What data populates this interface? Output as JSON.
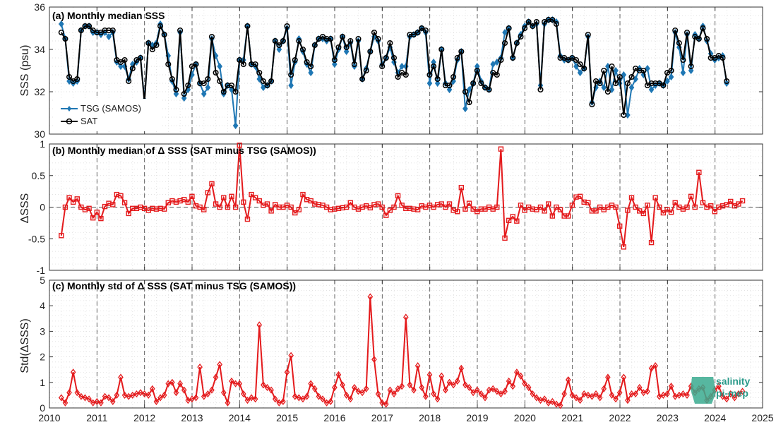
{
  "chart_data": [
    {
      "type": "line",
      "title": "(a) Monthly median SSS",
      "ylabel": "SSS (psu)",
      "xlim": [
        2010,
        2025
      ],
      "ylim": [
        30,
        36
      ],
      "yticks": [
        30,
        32,
        34,
        36
      ],
      "grid": "dotted minor grid, dashed yearly vertical lines",
      "legend": "bottom-left",
      "x_start": 2010.25,
      "x_step": 0.0833,
      "series": [
        {
          "name": "TSG (SAMOS)",
          "color": "#1f77b4",
          "marker": "diamond",
          "values": [
            35.2,
            34.5,
            32.5,
            32.4,
            32.5,
            34.9,
            35.1,
            35.1,
            34.8,
            34.8,
            34.7,
            34.8,
            34.6,
            34.8,
            33.4,
            33.2,
            33.2,
            32.6,
            33.3,
            33.4,
            33.6,
            31.6,
            34.3,
            34.2,
            34.3,
            35.2,
            34.7,
            33.7,
            32.5,
            31.9,
            34.8,
            31.7,
            32.1,
            32.8,
            33.3,
            32.4,
            31.9,
            32.2,
            34.5,
            33.7,
            33.2,
            31.9,
            32.3,
            32.1,
            30.4,
            33.5,
            33.5,
            35.1,
            33.3,
            33.2,
            32.6,
            32.2,
            32.3,
            32.5,
            34.4,
            34.0,
            34.4,
            35.0,
            32.3,
            33.4,
            34.5,
            33.9,
            33.3,
            32.9,
            34.2,
            34.5,
            34.5,
            34.4,
            34.5,
            33.3,
            34.0,
            34.6,
            33.9,
            34.3,
            33.2,
            34.4,
            32.6,
            33.1,
            33.9,
            34.6,
            34.4,
            33.3,
            33.6,
            34.1,
            33.4,
            32.9,
            33.2,
            33.2,
            34.6,
            34.7,
            34.8,
            35.0,
            34.8,
            32.4,
            33.4,
            32.4,
            34.0,
            32.4,
            32.1,
            32.5,
            33.5,
            33.9,
            31.2,
            32.1,
            32.4,
            33.2,
            32.5,
            32.2,
            32.1,
            33.3,
            33.4,
            33.6,
            34.8,
            35.0,
            33.6,
            34.3,
            34.7,
            35.1,
            35.3,
            35.1,
            35.2,
            32.3,
            35.2,
            35.4,
            35.4,
            35.3,
            33.7,
            33.5,
            33.5,
            33.6,
            33.2,
            32.9,
            33.1,
            34.6,
            31.5,
            32.2,
            32.5,
            32.2,
            33.2,
            32.1,
            33.0,
            32.4,
            32.8,
            30.9,
            32.2,
            32.6,
            33.1,
            32.8,
            33.1,
            32.1,
            32.3,
            32.4,
            32.3,
            32.5,
            32.7,
            34.8,
            34.1,
            32.9,
            34.7,
            33.0,
            34.7,
            34.5,
            35.1,
            34.4,
            33.8,
            33.5,
            33.6,
            33.7,
            32.4
          ]
        },
        {
          "name": "SAT",
          "color": "#000000",
          "marker": "circle",
          "values": [
            34.8,
            34.5,
            32.7,
            32.5,
            32.6,
            34.9,
            35.1,
            35.1,
            34.9,
            34.8,
            34.8,
            34.9,
            34.9,
            34.9,
            33.5,
            33.4,
            33.5,
            32.5,
            33.1,
            33.5,
            33.6,
            31.5,
            34.3,
            34.0,
            34.2,
            35.1,
            34.7,
            33.3,
            32.6,
            32.1,
            34.9,
            31.9,
            32.3,
            33.2,
            33.3,
            32.4,
            32.4,
            32.6,
            34.6,
            32.9,
            32.5,
            32.0,
            32.3,
            32.3,
            32.0,
            33.5,
            33.3,
            35.1,
            33.3,
            33.3,
            32.9,
            32.5,
            32.3,
            32.5,
            34.4,
            34.2,
            34.4,
            35.1,
            32.8,
            33.5,
            34.4,
            34.0,
            33.4,
            33.2,
            34.2,
            34.5,
            34.6,
            34.5,
            34.5,
            33.5,
            34.1,
            34.6,
            34.1,
            34.4,
            33.3,
            34.5,
            32.6,
            33.0,
            33.9,
            34.8,
            34.5,
            33.2,
            33.6,
            34.3,
            33.6,
            32.7,
            32.9,
            32.8,
            34.7,
            34.7,
            34.8,
            35.0,
            34.9,
            32.8,
            33.2,
            32.6,
            34.0,
            32.3,
            32.3,
            32.7,
            33.6,
            33.9,
            32.0,
            31.5,
            32.4,
            33.0,
            32.4,
            32.2,
            32.1,
            32.9,
            32.8,
            33.5,
            34.3,
            35.0,
            33.6,
            34.3,
            34.6,
            35.0,
            35.3,
            35.1,
            35.3,
            32.1,
            35.3,
            35.4,
            35.4,
            35.2,
            33.6,
            33.6,
            33.5,
            33.6,
            33.5,
            33.3,
            33.1,
            34.7,
            31.4,
            32.5,
            32.4,
            33.0,
            32.0,
            33.2,
            32.4,
            32.7,
            30.9,
            32.4,
            32.7,
            33.1,
            33.0,
            33.0,
            32.3,
            32.4,
            32.4,
            32.4,
            32.3,
            32.9,
            33.0,
            34.9,
            34.3,
            33.5,
            34.8,
            33.2,
            34.6,
            34.5,
            35.0,
            34.5,
            33.6,
            33.6,
            33.7,
            33.6,
            32.5
          ]
        }
      ]
    },
    {
      "type": "line",
      "title": "(b) Monthly median of Δ SSS (SAT minus TSG (SAMOS))",
      "ylabel": "ΔSSS",
      "xlim": [
        2010,
        2025
      ],
      "ylim": [
        -1,
        1
      ],
      "yticks": [
        -1,
        -0.5,
        0,
        0.5,
        1
      ],
      "x_start": 2010.25,
      "x_step": 0.0833,
      "series": [
        {
          "name": "",
          "color": "#e41a1c",
          "marker": "square",
          "values": [
            -0.45,
            0.0,
            0.15,
            0.08,
            0.13,
            0.0,
            -0.04,
            -0.02,
            -0.17,
            -0.08,
            -0.18,
            0.01,
            0.06,
            0.04,
            0.2,
            0.18,
            0.07,
            -0.1,
            -0.02,
            -0.02,
            0.0,
            -0.02,
            -0.05,
            -0.02,
            -0.03,
            -0.02,
            -0.03,
            0.07,
            0.1,
            0.08,
            0.1,
            0.12,
            0.08,
            0.17,
            0.02,
            0.0,
            -0.04,
            0.23,
            0.37,
            0.05,
            0.0,
            0.15,
            0.0,
            0.17,
            0.0,
            0.98,
            0.08,
            -0.19,
            0.2,
            0.15,
            0.1,
            0.03,
            0.05,
            -0.06,
            0.04,
            0.0,
            0.0,
            0.03,
            0.0,
            -0.09,
            -0.04,
            0.2,
            0.12,
            0.1,
            0.05,
            0.04,
            0.03,
            0.0,
            -0.04,
            -0.03,
            -0.02,
            -0.01,
            0.0,
            0.07,
            0.0,
            -0.03,
            0.0,
            0.02,
            -0.01,
            0.04,
            0.05,
            0.0,
            -0.13,
            -0.05,
            0.0,
            0.18,
            0.03,
            -0.02,
            -0.02,
            -0.03,
            -0.04,
            0.02,
            0.0,
            0.03,
            0.0,
            0.04,
            0.05,
            0.0,
            0.05,
            -0.05,
            -0.07,
            0.31,
            -0.03,
            0.06,
            -0.03,
            -0.07,
            -0.03,
            -0.03,
            0.0,
            -0.03,
            0.0,
            0.92,
            -0.49,
            -0.21,
            -0.15,
            -0.22,
            0.03,
            -0.05,
            0.0,
            -0.03,
            -0.04,
            0.0,
            -0.06,
            0.05,
            -0.14,
            0.0,
            -0.04,
            -0.14,
            -0.14,
            0.03,
            0.16,
            0.17,
            0.08,
            0.07,
            -0.06,
            -0.06,
            0.0,
            -0.04,
            0.0,
            0.03,
            0.0,
            -0.3,
            -0.63,
            -0.05,
            0.15,
            0.0,
            -0.06,
            -0.1,
            0.03,
            -0.56,
            0.15,
            0.0,
            -0.09,
            -0.04,
            -0.08,
            0.07,
            0.0,
            -0.03,
            0.0,
            0.17,
            0.0,
            0.55,
            0.07,
            0.0,
            0.02,
            -0.07,
            0.0,
            0.02,
            0.04,
            0.09,
            0.02,
            0.05,
            0.1
          ]
        }
      ]
    },
    {
      "type": "line",
      "title": "(c) Monthly std of Δ SSS (SAT minus TSG (SAMOS))",
      "ylabel": "Std(ΔSSS)",
      "xlim": [
        2010,
        2025
      ],
      "ylim": [
        0,
        5
      ],
      "yticks": [
        0,
        1,
        2,
        3,
        4,
        5
      ],
      "xticks": [
        2010,
        2011,
        2012,
        2013,
        2014,
        2015,
        2016,
        2017,
        2018,
        2019,
        2020,
        2021,
        2022,
        2023,
        2024,
        2025
      ],
      "x_start": 2010.25,
      "x_step": 0.0833,
      "series": [
        {
          "name": "",
          "color": "#e41a1c",
          "marker": "diamond",
          "values": [
            0.4,
            0.2,
            0.6,
            1.4,
            0.6,
            0.45,
            0.4,
            0.35,
            0.2,
            0.25,
            0.2,
            0.45,
            0.4,
            0.25,
            0.5,
            1.2,
            0.5,
            0.45,
            0.5,
            0.55,
            0.6,
            0.55,
            0.5,
            0.75,
            0.25,
            0.4,
            0.5,
            0.95,
            1.0,
            0.6,
            0.95,
            0.7,
            0.3,
            0.35,
            0.4,
            1.6,
            0.45,
            0.55,
            0.7,
            1.2,
            1.7,
            0.6,
            0.2,
            1.05,
            0.95,
            0.95,
            0.55,
            0.3,
            0.4,
            0.35,
            3.25,
            0.9,
            0.8,
            0.7,
            0.35,
            0.2,
            0.25,
            1.4,
            2.05,
            0.45,
            0.4,
            0.35,
            0.45,
            0.95,
            0.75,
            0.45,
            0.35,
            0.2,
            0.25,
            0.8,
            1.3,
            0.9,
            0.5,
            0.35,
            0.8,
            0.65,
            0.6,
            0.75,
            4.35,
            1.9,
            0.55,
            0.2,
            0.15,
            0.7,
            0.55,
            0.75,
            0.85,
            3.55,
            0.9,
            0.7,
            1.65,
            0.8,
            0.45,
            1.3,
            0.55,
            0.35,
            1.25,
            0.7,
            1.0,
            0.9,
            1.05,
            1.55,
            0.9,
            0.8,
            0.6,
            0.7,
            0.55,
            0.4,
            0.7,
            0.75,
            0.65,
            0.55,
            0.65,
            1.05,
            0.85,
            1.4,
            1.25,
            0.95,
            0.8,
            0.55,
            0.4,
            0.3,
            0.35,
            0.2,
            0.25,
            0.15,
            0.1,
            0.55,
            1.1,
            0.5,
            0.4,
            0.3,
            0.55,
            0.5,
            0.45,
            0.55,
            0.4,
            0.75,
            1.2,
            0.5,
            0.35,
            0.6,
            1.2,
            0.3,
            0.55,
            0.55,
            0.8,
            0.6,
            0.65,
            1.55,
            1.65,
            0.45,
            0.5,
            0.55,
            0.85,
            0.45,
            0.5,
            0.55,
            0.5,
            0.85,
            0.6,
            0.75,
            0.8,
            0.3,
            0.45,
            0.7,
            0.85,
            0.45,
            0.35,
            0.55,
            0.4,
            0.55,
            0.65
          ]
        }
      ]
    }
  ],
  "logo": {
    "line1": "salinity",
    "line2": "pi-mep"
  }
}
